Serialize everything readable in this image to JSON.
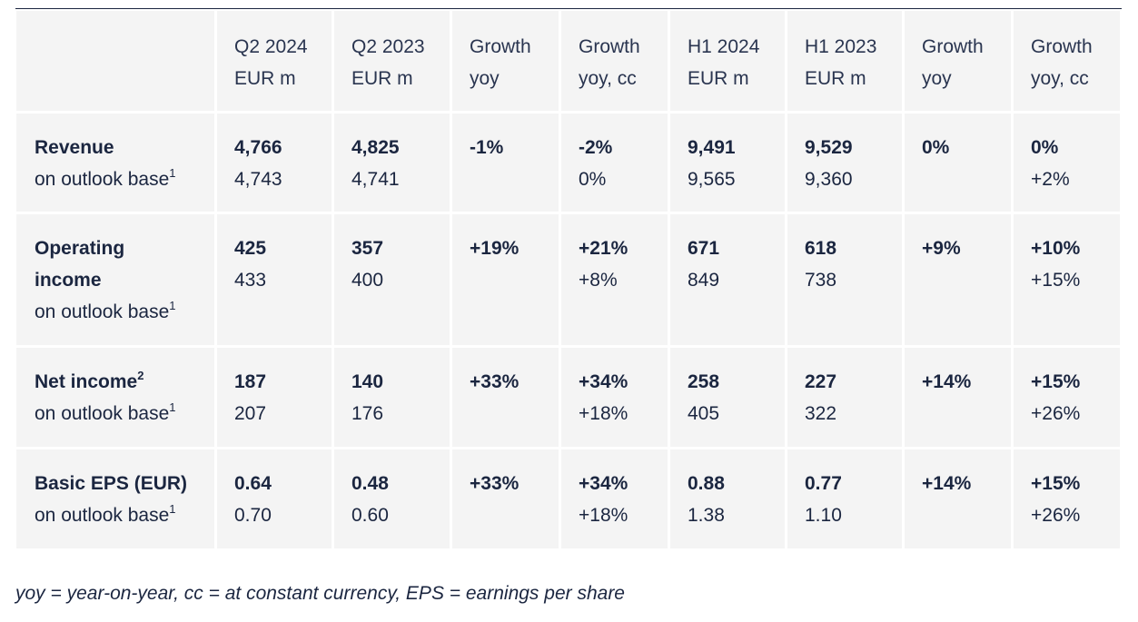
{
  "table": {
    "headers": [
      {
        "line1": "",
        "line2": ""
      },
      {
        "line1": "Q2 2024",
        "line2": "EUR m"
      },
      {
        "line1": "Q2 2023",
        "line2": "EUR m"
      },
      {
        "line1": "Growth",
        "line2": "yoy"
      },
      {
        "line1": "Growth",
        "line2": "yoy, cc"
      },
      {
        "line1": "H1 2024",
        "line2": "EUR m"
      },
      {
        "line1": "H1 2023",
        "line2": "EUR m"
      },
      {
        "line1": "Growth",
        "line2": "yoy"
      },
      {
        "line1": "Growth",
        "line2": "yoy, cc"
      }
    ],
    "rows": [
      {
        "label": "Revenue",
        "label_sup": "",
        "sublabel": "on outlook base",
        "sublabel_sup": "1",
        "cells": [
          {
            "main": "4,766",
            "sub": "4,743"
          },
          {
            "main": "4,825",
            "sub": "4,741"
          },
          {
            "main": " -1%",
            "sub": ""
          },
          {
            "main": "-2%",
            "sub": "0%"
          },
          {
            "main": "9,491",
            "sub": "9,565"
          },
          {
            "main": "9,529",
            "sub": "9,360"
          },
          {
            "main": "0%",
            "sub": ""
          },
          {
            "main": "0%",
            "sub": "+2%"
          }
        ]
      },
      {
        "label": "Operating income",
        "label_sup": "",
        "sublabel": "on outlook base",
        "sublabel_sup": "1",
        "cells": [
          {
            "main": "425",
            "sub": "433"
          },
          {
            "main": "357",
            "sub": "400"
          },
          {
            "main": "+19%",
            "sub": ""
          },
          {
            "main": "+21%",
            "sub": "+8%"
          },
          {
            "main": "671",
            "sub": "849"
          },
          {
            "main": "618",
            "sub": "738"
          },
          {
            "main": "+9%",
            "sub": ""
          },
          {
            "main": "+10%",
            "sub": "+15%"
          }
        ]
      },
      {
        "label": "Net income",
        "label_sup": "2",
        "sublabel": "on outlook base",
        "sublabel_sup": "1",
        "cells": [
          {
            "main": "187",
            "sub": "207"
          },
          {
            "main": "140",
            "sub": "176"
          },
          {
            "main": "+33%",
            "sub": ""
          },
          {
            "main": "+34%",
            "sub": "+18%"
          },
          {
            "main": "258",
            "sub": "405"
          },
          {
            "main": "227",
            "sub": "322"
          },
          {
            "main": "+14%",
            "sub": ""
          },
          {
            "main": "+15%",
            "sub": "+26%"
          }
        ]
      },
      {
        "label": "Basic EPS (EUR)",
        "label_sup": "",
        "sublabel": "on outlook base",
        "sublabel_sup": "1",
        "cells": [
          {
            "main": "0.64",
            "sub": "0.70"
          },
          {
            "main": "0.48",
            "sub": "0.60"
          },
          {
            "main": "+33%",
            "sub": ""
          },
          {
            "main": "+34%",
            "sub": "+18%"
          },
          {
            "main": "0.88",
            "sub": "1.38"
          },
          {
            "main": "0.77",
            "sub": "1.10"
          },
          {
            "main": "+14%",
            "sub": ""
          },
          {
            "main": "+15%",
            "sub": "+26%"
          }
        ]
      }
    ]
  },
  "footnote": "yoy = year-on-year, cc = at constant currency, EPS = earnings per share"
}
